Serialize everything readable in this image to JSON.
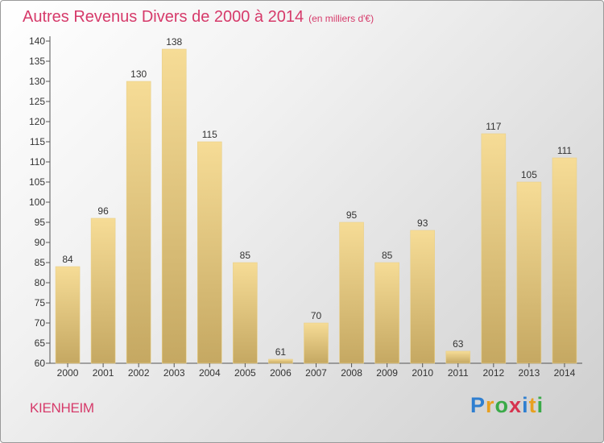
{
  "title": "Autres Revenus Divers de 2000 à 2014",
  "subtitle": "(en milliers d'€)",
  "location": "KIENHEIM",
  "logo": {
    "text": "Proxiti",
    "colors": [
      "#2f7fd0",
      "#e8a020",
      "#3aaa48",
      "#d6334e",
      "#2f7fd0",
      "#e8a020",
      "#3aaa48"
    ]
  },
  "colors": {
    "title": "#d63a6a",
    "bar_light": "#f6dc96",
    "bar_dark": "#c5a862",
    "axis": "#555555"
  },
  "chart_data": {
    "type": "bar",
    "title": "Autres Revenus Divers de 2000 à 2014",
    "xlabel": "",
    "ylabel": "",
    "categories": [
      "2000",
      "2001",
      "2002",
      "2003",
      "2004",
      "2005",
      "2006",
      "2007",
      "2008",
      "2009",
      "2010",
      "2011",
      "2012",
      "2013",
      "2014"
    ],
    "values": [
      84,
      96,
      130,
      138,
      115,
      85,
      61,
      70,
      95,
      85,
      93,
      63,
      117,
      105,
      111
    ],
    "ylim": [
      60,
      140
    ],
    "yticks": [
      60,
      65,
      70,
      75,
      80,
      85,
      90,
      95,
      100,
      105,
      110,
      115,
      120,
      125,
      130,
      135,
      140
    ],
    "grid": false,
    "data_labels": true
  }
}
